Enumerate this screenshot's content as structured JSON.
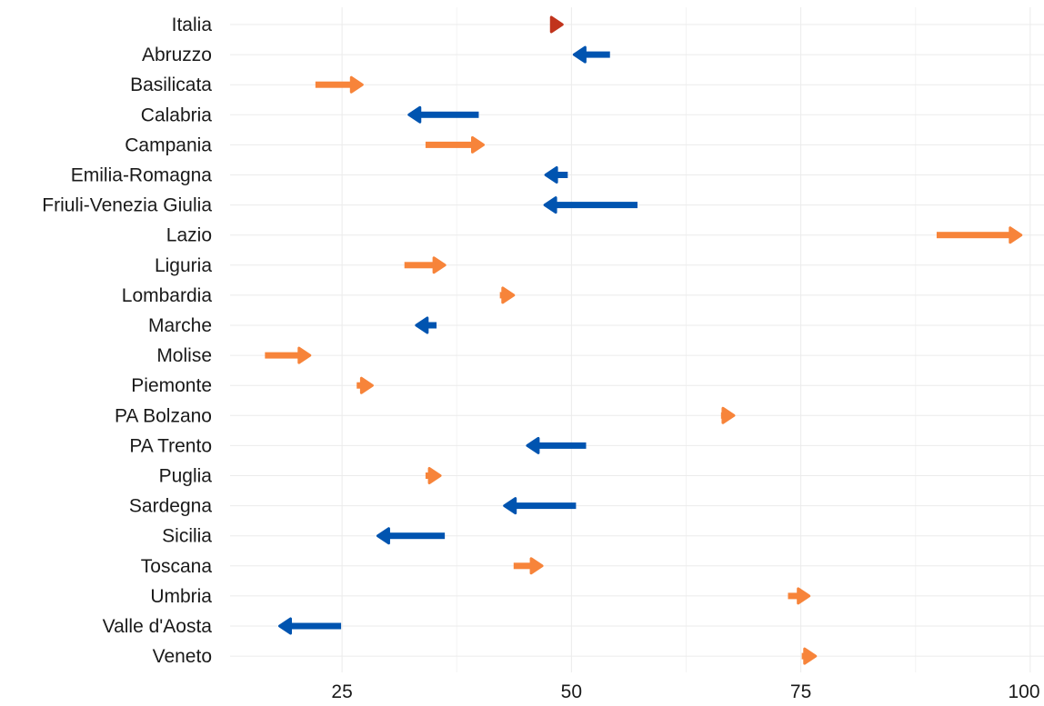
{
  "chart_data": {
    "type": "arrow",
    "x_ticks": [
      25,
      50,
      75,
      100
    ],
    "xlim": [
      12.8,
      101.5
    ],
    "grid": true,
    "colors": {
      "increase": "#f7843a",
      "decrease": "#0054b0",
      "italia": "#c1341c"
    },
    "categories": [
      "Italia",
      "Abruzzo",
      "Basilicata",
      "Calabria",
      "Campania",
      "Emilia-Romagna",
      "Friuli-Venezia Giulia",
      "Lazio",
      "Liguria",
      "Lombardia",
      "Marche",
      "Molise",
      "Piemonte",
      "PA Bolzano",
      "PA Trento",
      "Puglia",
      "Sardegna",
      "Sicilia",
      "Toscana",
      "Umbria",
      "Valle d'Aosta",
      "Veneto"
    ],
    "series": [
      {
        "name": "",
        "values": [
          47.7,
          54.2,
          22.1,
          39.9,
          34.1,
          49.6,
          57.2,
          89.8,
          31.8,
          42.2,
          35.3,
          16.6,
          26.6,
          66.3,
          51.6,
          34.1,
          50.5,
          36.2,
          43.7,
          73.6,
          24.9,
          75.1
        ]
      },
      {
        "name": "",
        "values": [
          49.0,
          50.3,
          27.2,
          32.3,
          40.4,
          47.2,
          47.1,
          99.0,
          36.2,
          43.7,
          33.1,
          21.5,
          28.3,
          67.7,
          45.2,
          35.7,
          42.7,
          28.9,
          46.8,
          75.9,
          18.2,
          76.6
        ]
      }
    ]
  }
}
